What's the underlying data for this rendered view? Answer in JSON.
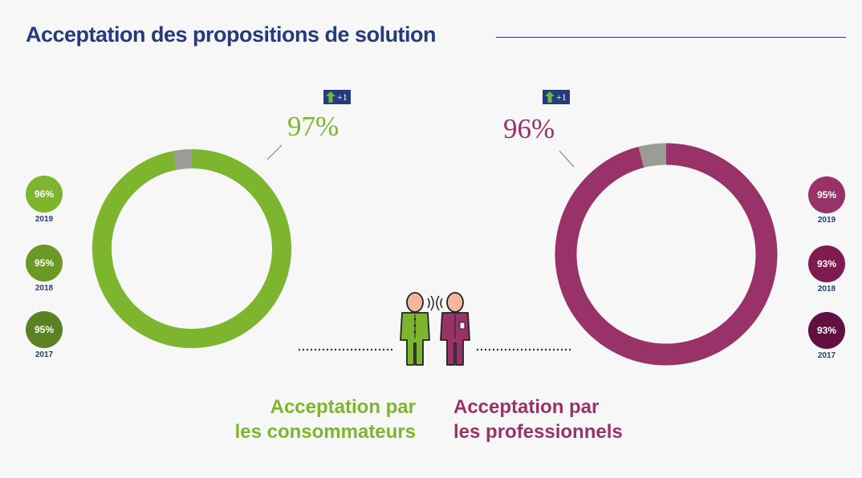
{
  "title": "Acceptation des propositions de solution",
  "colors": {
    "title": "#243c7c",
    "consumers": "#7db52e",
    "professionals": "#983268",
    "remainder": "#9b9b98",
    "badge": "#243c7c",
    "badge_arrow": "#6dbb2f"
  },
  "chart_data": [
    {
      "type": "pie",
      "donut": true,
      "value": 97,
      "value_label": "97%",
      "change_label": "+1",
      "label_line1": "Acceptation par",
      "label_line2": "les consommateurs",
      "history": [
        {
          "year": "2019",
          "label": "96%",
          "value": 96,
          "color": "#7db52e"
        },
        {
          "year": "2018",
          "label": "95%",
          "value": 95,
          "color": "#6a9a25"
        },
        {
          "year": "2017",
          "label": "95%",
          "value": 95,
          "color": "#5a8223"
        }
      ]
    },
    {
      "type": "pie",
      "donut": true,
      "value": 96,
      "value_label": "96%",
      "change_label": "+1",
      "label_line1": "Acceptation par",
      "label_line2": "les professionnels",
      "history": [
        {
          "year": "2019",
          "label": "95%",
          "value": 95,
          "color": "#983268"
        },
        {
          "year": "2018",
          "label": "93%",
          "value": 93,
          "color": "#7e1c50"
        },
        {
          "year": "2017",
          "label": "93%",
          "value": 93,
          "color": "#621040"
        }
      ]
    }
  ]
}
